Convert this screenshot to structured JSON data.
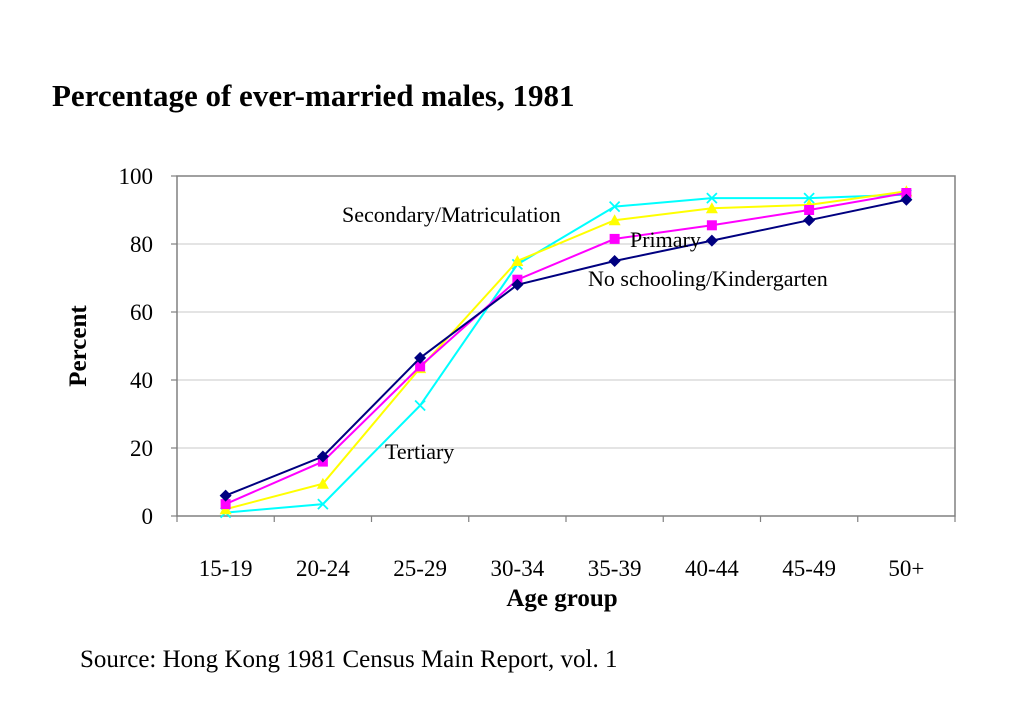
{
  "title": "Percentage of ever-married males, 1981",
  "source": "Source: Hong Kong 1981 Census Main Report, vol. 1",
  "chart_data": {
    "type": "line",
    "title": "Percentage of ever-married males, 1981",
    "xlabel": "Age group",
    "ylabel": "Percent",
    "categories": [
      "15-19",
      "20-24",
      "25-29",
      "30-34",
      "35-39",
      "40-44",
      "45-49",
      "50+"
    ],
    "ylim": [
      0,
      100
    ],
    "yticks": [
      0,
      20,
      40,
      60,
      80,
      100
    ],
    "grid": "horizontal",
    "legend": "none",
    "series": [
      {
        "name": "No schooling/Kindergarten",
        "color": "#000080",
        "marker": "diamond",
        "values": [
          6,
          17.5,
          46.5,
          68,
          75,
          81,
          87,
          93
        ]
      },
      {
        "name": "Primary",
        "color": "#ff00ff",
        "marker": "square",
        "values": [
          3.5,
          16,
          44,
          69.5,
          81.5,
          85.5,
          90,
          95
        ]
      },
      {
        "name": "Secondary/Matriculation",
        "color": "#ffff00",
        "marker": "triangle",
        "values": [
          2,
          9.5,
          43.5,
          75,
          87,
          90.5,
          91.5,
          95.5
        ]
      },
      {
        "name": "Tertiary",
        "color": "#00ffff",
        "marker": "x",
        "values": [
          1,
          3.5,
          32.5,
          74,
          91,
          93.5,
          93.5,
          94.5
        ]
      }
    ]
  }
}
